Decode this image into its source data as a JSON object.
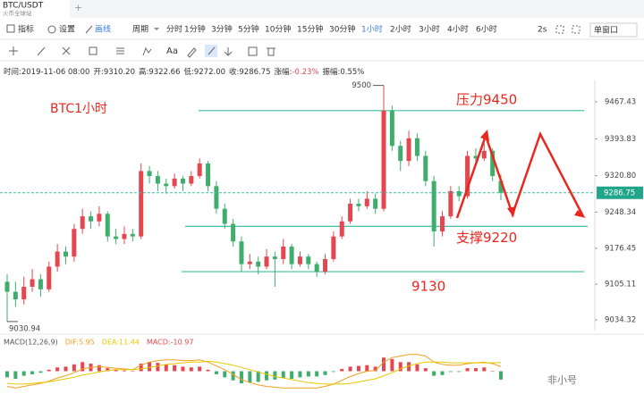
{
  "tab": {
    "symbol": "BTC/USDT",
    "exchange": "火币全球站",
    "add": "+"
  },
  "toolbar": {
    "indicator": "指标",
    "settings": "设置",
    "draw": "画线",
    "period_label": "周期",
    "periods": [
      "分时",
      "1分钟",
      "3分钟",
      "5分钟",
      "10分钟",
      "15分钟",
      "30分钟",
      "1小时",
      "2小时",
      "3小时",
      "4小时",
      "6小时"
    ],
    "active_period_index": 7,
    "refresh": "2s",
    "window": "单窗口",
    "text_tool": "Aa"
  },
  "info": [
    "时间:2019-11-06 08:00",
    "开:9310.20",
    "高:9322.66",
    "低:9272.00",
    "收:9286.75",
    "涨幅:",
    "-0.23%",
    "振幅:0.55%"
  ],
  "chart_data": {
    "type": "candlestick",
    "title": "BTC1小时",
    "up_color": "#e4474f",
    "down_color": "#3fae6c",
    "ylim": [
      9013,
      9510
    ],
    "yticks": [
      {
        "value": 9467.43,
        "label": "9467.43"
      },
      {
        "value": 9393.83,
        "label": "9393.83"
      },
      {
        "value": 9320.8,
        "label": "9320.80"
      },
      9248.34,
      9176.45,
      9105.11,
      9034.32
    ],
    "current_price": 9286.75,
    "high_marker": 9500,
    "low_marker": 9030.94,
    "levels": [
      {
        "label": "压力9450",
        "value": 9450
      },
      {
        "label": "支撑9220",
        "value": 9220
      },
      {
        "label": "9130",
        "value": 9130
      }
    ],
    "candles": [
      [
        9110,
        9125,
        9030.94,
        9090
      ],
      [
        9090,
        9110,
        9060,
        9075
      ],
      [
        9075,
        9120,
        9065,
        9100
      ],
      [
        9100,
        9135,
        9090,
        9115
      ],
      [
        9115,
        9125,
        9080,
        9095
      ],
      [
        9095,
        9150,
        9090,
        9140
      ],
      [
        9140,
        9185,
        9130,
        9170
      ],
      [
        9170,
        9180,
        9145,
        9160
      ],
      [
        9160,
        9225,
        9150,
        9215
      ],
      [
        9215,
        9255,
        9205,
        9240
      ],
      [
        9240,
        9250,
        9215,
        9230
      ],
      [
        9230,
        9260,
        9220,
        9245
      ],
      [
        9245,
        9250,
        9190,
        9200
      ],
      [
        9200,
        9215,
        9185,
        9195
      ],
      [
        9195,
        9220,
        9185,
        9205
      ],
      [
        9205,
        9215,
        9190,
        9200
      ],
      [
        9200,
        9345,
        9195,
        9330
      ],
      [
        9330,
        9340,
        9305,
        9320
      ],
      [
        9320,
        9330,
        9290,
        9305
      ],
      [
        9305,
        9315,
        9285,
        9300
      ],
      [
        9300,
        9325,
        9295,
        9315
      ],
      [
        9315,
        9320,
        9290,
        9305
      ],
      [
        9305,
        9330,
        9300,
        9320
      ],
      [
        9320,
        9355,
        9315,
        9345
      ],
      [
        9345,
        9350,
        9290,
        9300
      ],
      [
        9300,
        9310,
        9245,
        9255
      ],
      [
        9255,
        9265,
        9215,
        9225
      ],
      [
        9225,
        9235,
        9180,
        9190
      ],
      [
        9190,
        9200,
        9130,
        9145
      ],
      [
        9145,
        9165,
        9135,
        9150
      ],
      [
        9150,
        9160,
        9125,
        9140
      ],
      [
        9140,
        9175,
        9135,
        9160
      ],
      [
        9160,
        9170,
        9100,
        9155
      ],
      [
        9155,
        9195,
        9145,
        9180
      ],
      [
        9180,
        9185,
        9135,
        9145
      ],
      [
        9145,
        9170,
        9140,
        9160
      ],
      [
        9160,
        9165,
        9135,
        9145
      ],
      [
        9145,
        9150,
        9120,
        9130
      ],
      [
        9130,
        9165,
        9125,
        9155
      ],
      [
        9155,
        9210,
        9150,
        9200
      ],
      [
        9200,
        9240,
        9195,
        9230
      ],
      [
        9230,
        9275,
        9225,
        9265
      ],
      [
        9265,
        9275,
        9250,
        9260
      ],
      [
        9260,
        9290,
        9255,
        9275
      ],
      [
        9275,
        9285,
        9245,
        9255
      ],
      [
        9255,
        9500,
        9250,
        9450
      ],
      [
        9450,
        9460,
        9370,
        9380
      ],
      [
        9380,
        9390,
        9330,
        9350
      ],
      [
        9350,
        9410,
        9340,
        9395
      ],
      [
        9395,
        9405,
        9350,
        9360
      ],
      [
        9360,
        9370,
        9300,
        9310
      ],
      [
        9310,
        9320,
        9180,
        9210
      ],
      [
        9210,
        9250,
        9200,
        9240
      ],
      [
        9240,
        9300,
        9235,
        9290
      ],
      [
        9290,
        9300,
        9270,
        9280
      ],
      [
        9280,
        9370,
        9275,
        9360
      ],
      [
        9360,
        9375,
        9345,
        9355
      ],
      [
        9355,
        9385,
        9350,
        9370
      ],
      [
        9370,
        9375,
        9310,
        9320
      ],
      [
        9310.2,
        9322.66,
        9272,
        9286.75
      ]
    ],
    "macd": {
      "label": "MACD(12,26,9)",
      "dif_label": "DIF:5.95",
      "dea_label": "DEA:11.44",
      "macd_label": "MACD:-10.97",
      "dif_color": "#f0a020",
      "dea_color": "#e8c800",
      "ylim": [
        -30,
        30
      ],
      "histogram": [
        -8,
        -10,
        -6,
        -4,
        -2,
        2,
        5,
        6,
        9,
        12,
        10,
        8,
        4,
        2,
        1,
        0,
        10,
        12,
        11,
        9,
        8,
        6,
        5,
        6,
        2,
        -4,
        -8,
        -12,
        -16,
        -15,
        -14,
        -12,
        -11,
        -9,
        -10,
        -8,
        -7,
        -7,
        -5,
        -1,
        3,
        6,
        7,
        8,
        6,
        18,
        16,
        12,
        12,
        9,
        4,
        -6,
        -5,
        -1,
        -1,
        4,
        4,
        5,
        0,
        -10.97
      ],
      "dif": [
        -20,
        -22,
        -20,
        -18,
        -16,
        -13,
        -9,
        -6,
        -2,
        3,
        5,
        6,
        5,
        4,
        3,
        2,
        8,
        12,
        14,
        15,
        15,
        14,
        14,
        15,
        12,
        7,
        2,
        -4,
        -11,
        -15,
        -18,
        -20,
        -21,
        -22,
        -22,
        -22,
        -22,
        -22,
        -20,
        -17,
        -12,
        -7,
        -3,
        0,
        1,
        12,
        18,
        20,
        22,
        22,
        20,
        12,
        9,
        8,
        8,
        10,
        11,
        12,
        10,
        5.95
      ],
      "dea": [
        -16,
        -17,
        -17,
        -16,
        -15,
        -14,
        -12,
        -10,
        -8,
        -5,
        -3,
        -1,
        1,
        2,
        2,
        2,
        3,
        5,
        7,
        9,
        10,
        11,
        12,
        12,
        13,
        12,
        10,
        8,
        5,
        2,
        -1,
        -4,
        -7,
        -9,
        -11,
        -13,
        -15,
        -16,
        -17,
        -17,
        -17,
        -16,
        -14,
        -12,
        -10,
        -6,
        -2,
        3,
        7,
        10,
        12,
        12,
        12,
        11,
        11,
        11,
        11,
        11,
        11,
        11.44
      ]
    }
  },
  "watermark": "非小号"
}
